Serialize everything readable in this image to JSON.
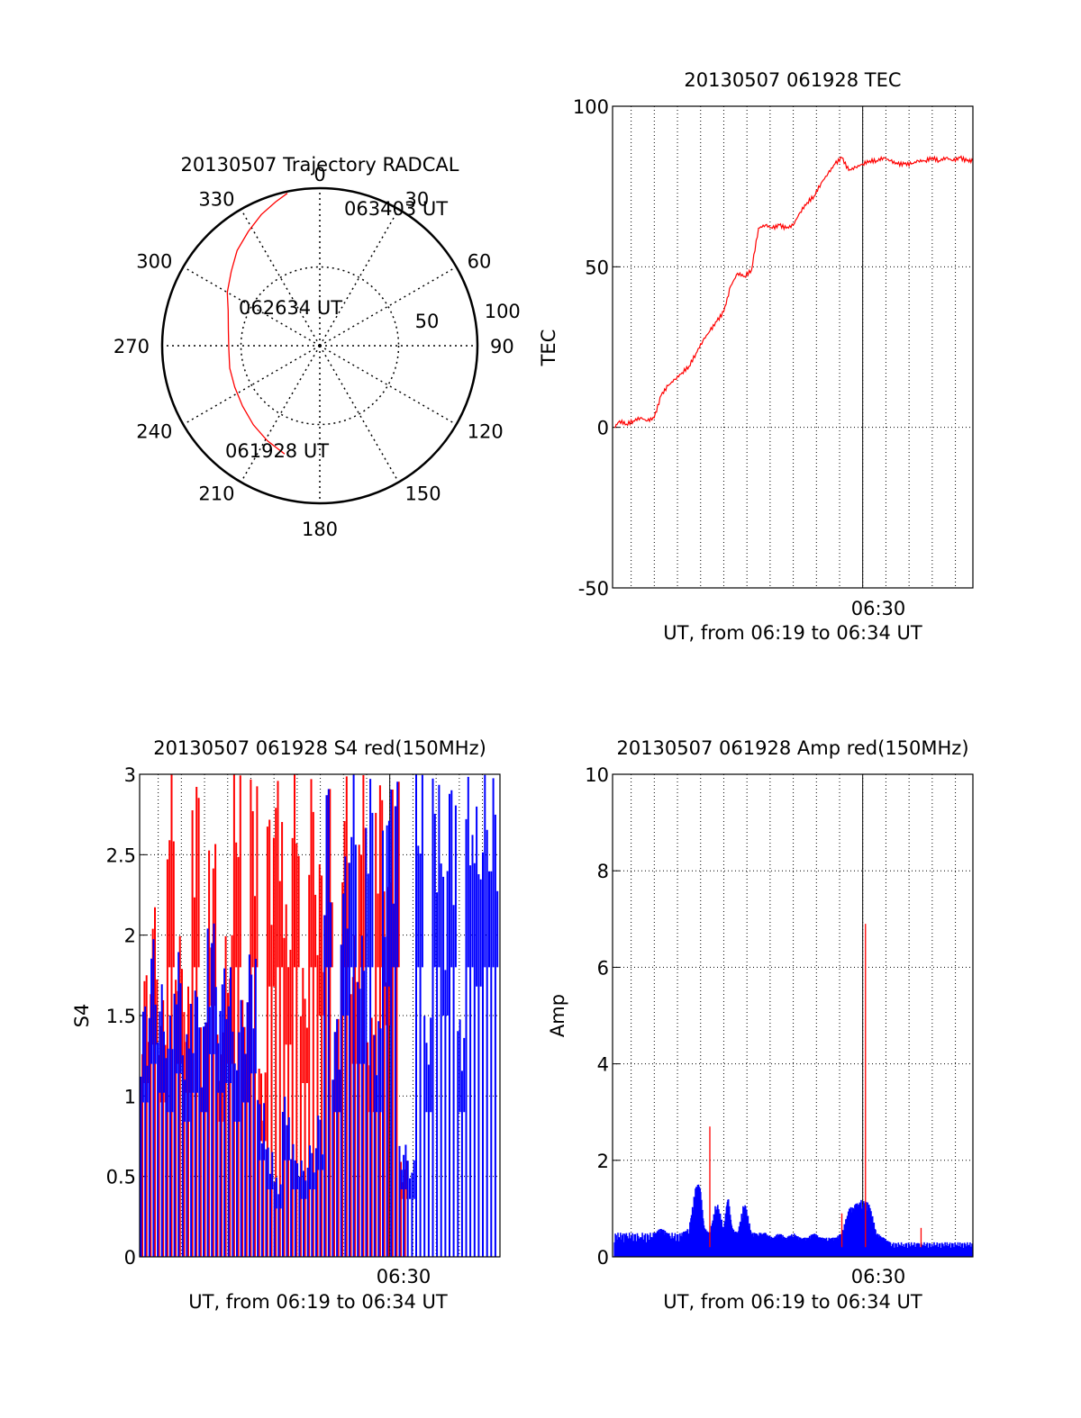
{
  "chart_data": [
    {
      "type": "polar",
      "title": "20130507 Trajectory RADCAL",
      "angle_labels": [
        "0",
        "30",
        "60",
        "90",
        "120",
        "150",
        "180",
        "210",
        "240",
        "270",
        "300",
        "330"
      ],
      "radial_labels": [
        "100",
        "50"
      ],
      "rmax": 100,
      "trajectory": {
        "color": "#ff0000",
        "points": [
          {
            "az": 198,
            "el": 25
          },
          {
            "az": 209,
            "el": 28
          },
          {
            "az": 220,
            "el": 31
          },
          {
            "az": 232,
            "el": 34
          },
          {
            "az": 244,
            "el": 36
          },
          {
            "az": 256,
            "el": 37
          },
          {
            "az": 268,
            "el": 38
          },
          {
            "az": 280,
            "el": 37
          },
          {
            "az": 291,
            "el": 34
          },
          {
            "az": 300,
            "el": 29
          },
          {
            "az": 310,
            "el": 24
          },
          {
            "az": 319,
            "el": 18
          },
          {
            "az": 328,
            "el": 13
          },
          {
            "az": 336,
            "el": 8
          },
          {
            "az": 343,
            "el": 4
          },
          {
            "az": 348,
            "el": 1
          }
        ]
      },
      "time_labels": [
        "061928 UT",
        "062634 UT",
        "063403 UT"
      ]
    },
    {
      "type": "line",
      "title": "20130507 061928 TEC",
      "xlabel": "UT, from 06:19 to 06:34 UT",
      "ylabel": "TEC",
      "xlim": [
        6.32,
        6.5793
      ],
      "ylim": [
        -50,
        100
      ],
      "yticks": [
        "-50",
        "0",
        "50",
        "100"
      ],
      "xtick_label": "06:30",
      "xtick_value": 6.5,
      "series": [
        {
          "name": "TEC",
          "color": "#ff0000",
          "x": [
            6.3214,
            6.325,
            6.33,
            6.335,
            6.34,
            6.345,
            6.35,
            6.355,
            6.36,
            6.365,
            6.37,
            6.375,
            6.38,
            6.385,
            6.39,
            6.395,
            6.4,
            6.405,
            6.41,
            6.415,
            6.42,
            6.425,
            6.43,
            6.435,
            6.44,
            6.445,
            6.45,
            6.455,
            6.46,
            6.465,
            6.47,
            6.475,
            6.48,
            6.485,
            6.49,
            6.495,
            6.5,
            6.505,
            6.51,
            6.515,
            6.52,
            6.525,
            6.53,
            6.535,
            6.54,
            6.545,
            6.55,
            6.555,
            6.56,
            6.565,
            6.57,
            6.575,
            6.5793
          ],
          "y": [
            0,
            2,
            1,
            2,
            3,
            2,
            3,
            10,
            13,
            15,
            17,
            19,
            23,
            27,
            30,
            33,
            36,
            44,
            48,
            47,
            49,
            62,
            63,
            62,
            63,
            62,
            63,
            67,
            70,
            72,
            76,
            79,
            82,
            84,
            80,
            81,
            82,
            83,
            83,
            84,
            83,
            82,
            82,
            82,
            83,
            83,
            84,
            83,
            84,
            83,
            84,
            83,
            83
          ]
        }
      ]
    },
    {
      "type": "line",
      "title": "20130507 061928 S4 red(150MHz)",
      "xlabel": "UT, from 06:19 to 06:34 UT",
      "ylabel": "S4",
      "xlim": [
        6.32,
        6.5793
      ],
      "ylim": [
        0,
        3
      ],
      "yticks": [
        "0",
        "0.5",
        "1",
        "1.5",
        "2",
        "2.5",
        "3"
      ],
      "xtick_label": "06:30",
      "xtick_value": 6.5,
      "series": [
        {
          "name": "S4 red",
          "color": "#ff0000",
          "x": [
            6.322,
            6.328,
            6.334,
            6.34,
            6.346,
            6.352,
            6.358,
            6.364,
            6.37,
            6.376,
            6.382,
            6.388,
            6.394,
            6.4,
            6.406,
            6.412,
            6.418,
            6.424,
            6.43,
            6.436,
            6.442,
            6.448,
            6.454,
            6.46,
            6.466,
            6.472,
            6.478,
            6.484,
            6.49,
            6.496,
            6.502,
            6.508
          ],
          "y": [
            1.8,
            2.2,
            1.6,
            3.0,
            2.0,
            1.7,
            3.0,
            1.5,
            2.6,
            1.4,
            2.0,
            3.0,
            1.6,
            3.0,
            1.2,
            2.8,
            3.0,
            2.2,
            3.0,
            1.8,
            3.0,
            2.5,
            3.0,
            1.5,
            3.0,
            2.0,
            3.0,
            1.5,
            3.0,
            2.4,
            3.0,
            0.6
          ]
        },
        {
          "name": "S4 blue",
          "color": "#0000ff",
          "x": [
            6.321,
            6.327,
            6.333,
            6.339,
            6.345,
            6.351,
            6.357,
            6.363,
            6.369,
            6.375,
            6.381,
            6.387,
            6.393,
            6.399,
            6.405,
            6.411,
            6.417,
            6.423,
            6.429,
            6.435,
            6.441,
            6.447,
            6.453,
            6.459,
            6.465,
            6.471,
            6.477,
            6.483,
            6.489,
            6.495,
            6.501,
            6.507,
            6.513,
            6.519,
            6.525,
            6.531,
            6.537,
            6.543,
            6.549,
            6.555,
            6.561,
            6.567,
            6.573
          ],
          "y": [
            1.6,
            2.0,
            1.7,
            1.5,
            1.9,
            1.4,
            1.7,
            1.5,
            2.1,
            1.7,
            1.8,
            1.4,
            1.6,
            1.9,
            1.0,
            0.7,
            0.5,
            1.0,
            0.7,
            0.6,
            0.7,
            0.9,
            3.0,
            1.5,
            2.5,
            3.0,
            2.0,
            3.0,
            1.5,
            2.8,
            3.0,
            0.7,
            0.6,
            3.0,
            1.5,
            3.0,
            2.5,
            3.0,
            1.5,
            3.0,
            2.8,
            3.0,
            3.0
          ]
        }
      ]
    },
    {
      "type": "line",
      "title": "20130507 061928 Amp red(150MHz)",
      "xlabel": "UT, from 06:19 to 06:34 UT",
      "ylabel": "Amp",
      "xlim": [
        6.32,
        6.5793
      ],
      "ylim": [
        0,
        10
      ],
      "yticks": [
        "0",
        "2",
        "4",
        "6",
        "8",
        "10"
      ],
      "xtick_label": "06:30",
      "xtick_value": 6.5,
      "series": [
        {
          "name": "Amp blue",
          "color": "#0000ff",
          "x": [
            6.3214,
            6.33,
            6.34,
            6.35,
            6.355,
            6.36,
            6.37,
            6.375,
            6.38,
            6.383,
            6.386,
            6.39,
            6.395,
            6.4,
            6.403,
            6.406,
            6.41,
            6.415,
            6.42,
            6.425,
            6.43,
            6.435,
            6.44,
            6.445,
            6.45,
            6.455,
            6.46,
            6.465,
            6.47,
            6.475,
            6.48,
            6.485,
            6.49,
            6.495,
            6.5,
            6.505,
            6.51,
            6.515,
            6.52,
            6.53,
            6.54,
            6.55,
            6.56,
            6.57,
            6.5793
          ],
          "y": [
            0.5,
            0.5,
            0.5,
            0.5,
            0.6,
            0.5,
            0.5,
            0.6,
            1.5,
            1.5,
            0.6,
            0.5,
            1.2,
            0.6,
            1.3,
            0.6,
            0.5,
            1.2,
            0.5,
            0.5,
            0.5,
            0.4,
            0.5,
            0.4,
            0.5,
            0.4,
            0.4,
            0.5,
            0.4,
            0.4,
            0.4,
            0.5,
            1.0,
            1.1,
            1.2,
            1.1,
            0.5,
            0.4,
            0.3,
            0.3,
            0.3,
            0.3,
            0.3,
            0.3,
            0.3
          ]
        },
        {
          "name": "Amp red",
          "color": "#ff0000",
          "x": [
            6.39,
            6.485,
            6.502,
            6.542
          ],
          "y": [
            2.7,
            0.9,
            6.9,
            0.6
          ]
        }
      ]
    }
  ]
}
